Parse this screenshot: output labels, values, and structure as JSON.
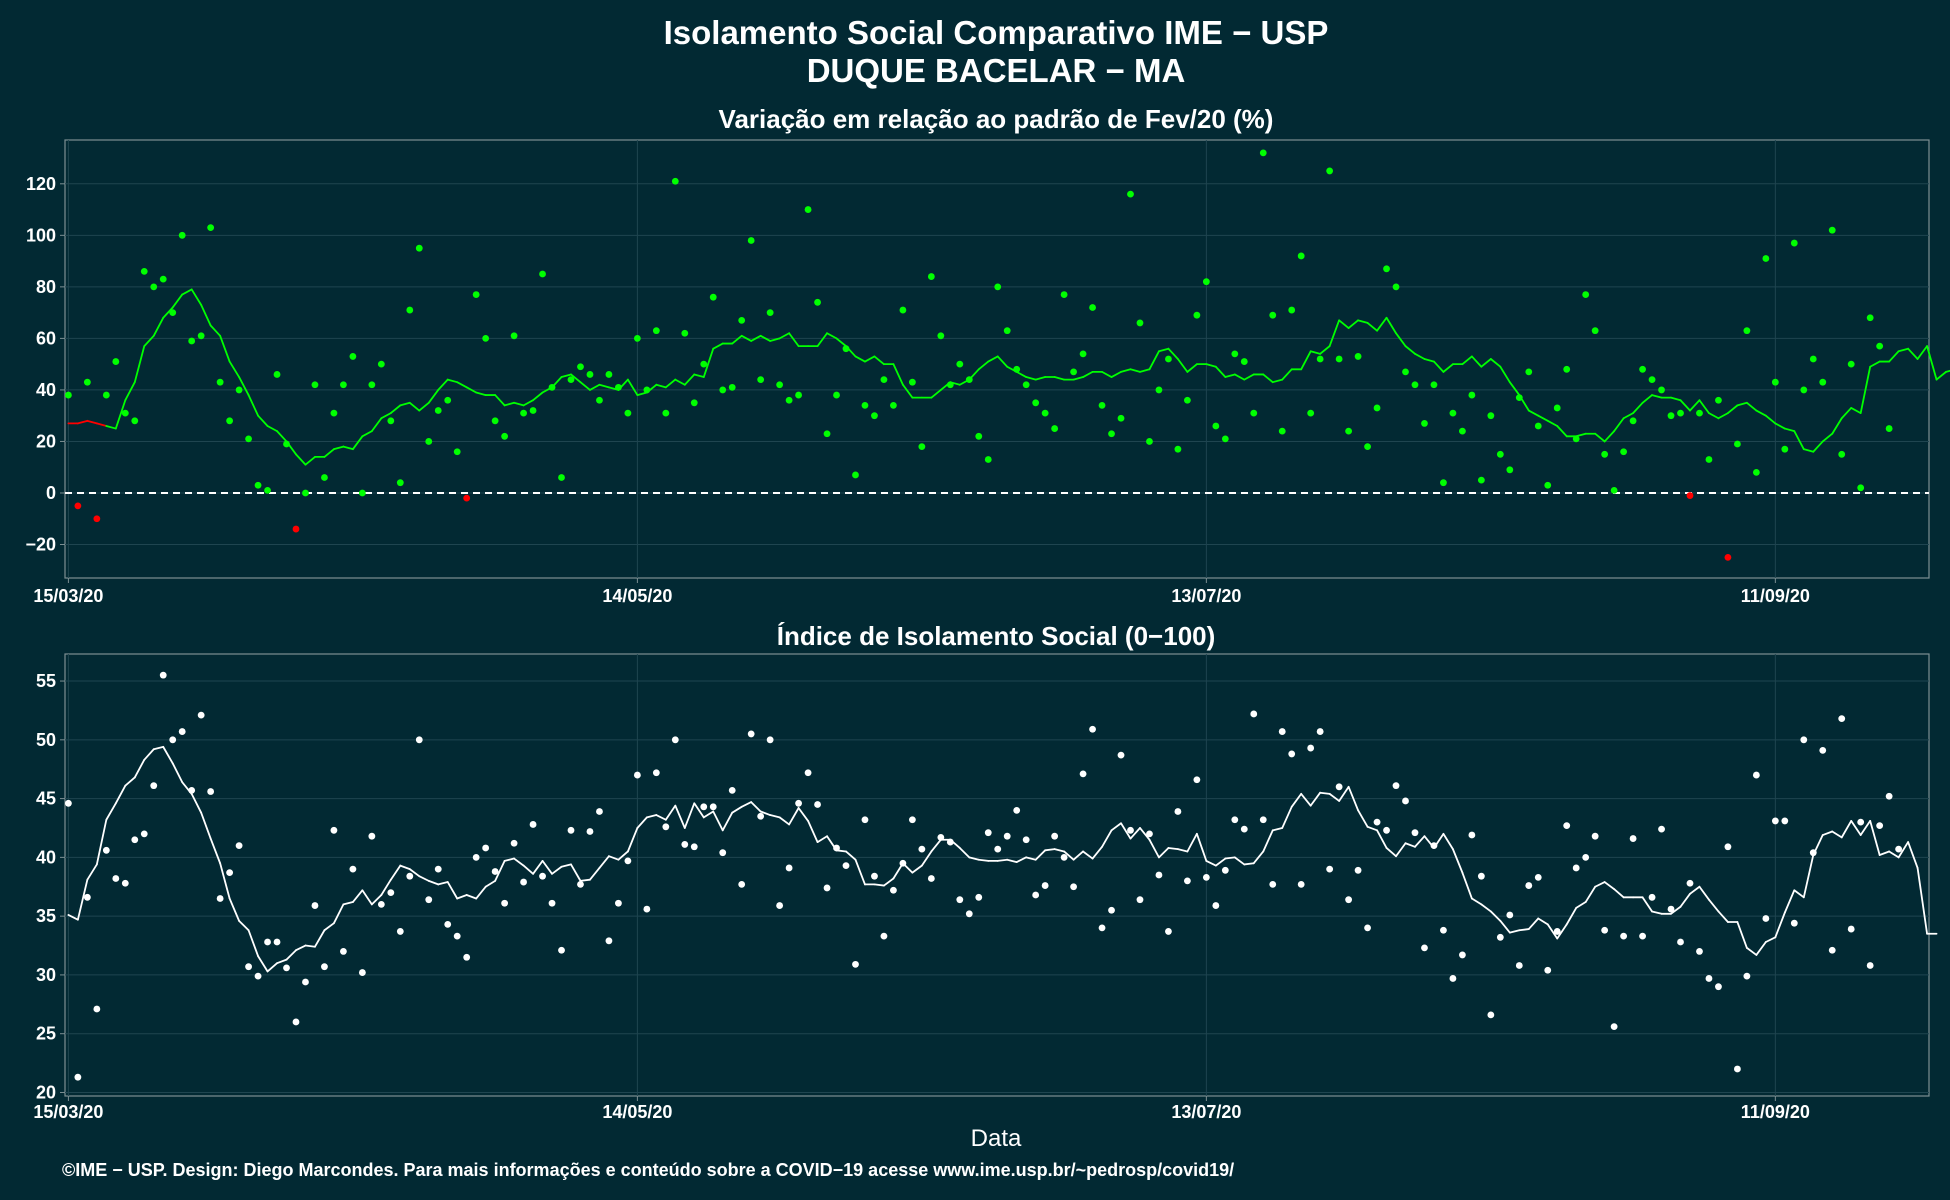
{
  "header": {
    "title_line1": "Isolamento Social Comparativo IME − USP",
    "title_line2": "DUQUE BACELAR − MA"
  },
  "footer": {
    "xlabel": "Data",
    "credit": "©IME − USP. Design: Diego Marcondes. Para mais informações e conteúdo sobre a COVID−19 acesse www.ime.usp.br/~pedrosp/covid19/"
  },
  "colors": {
    "background": "#022933",
    "positive": "#00ff00",
    "negative": "#ff0000",
    "index": "#ffffff"
  },
  "chart_data": [
    {
      "type": "scatter",
      "title": "Variação em relação ao padrão de Fev/20 (%)",
      "x_start": "2020-03-15",
      "x_end": "2020-09-25",
      "xticks": [
        "15/03/20",
        "14/05/20",
        "13/07/20",
        "11/09/20"
      ],
      "yticks": [
        -20,
        0,
        20,
        40,
        60,
        80,
        100,
        120
      ],
      "ylim": [
        -33,
        137
      ],
      "reference_line": 0,
      "series": [
        {
          "kind": "points",
          "values": [
            38,
            -5,
            43,
            -10,
            38,
            51,
            31,
            28,
            86,
            80,
            83,
            70,
            100,
            59,
            61,
            103,
            43,
            28,
            40,
            21,
            3,
            1,
            46,
            19,
            -14,
            0,
            42,
            6,
            31,
            42,
            53,
            0,
            42,
            50,
            28,
            4,
            71,
            95,
            20,
            32,
            36,
            16,
            -2,
            77,
            60,
            28,
            22,
            61,
            31,
            32,
            85,
            41,
            6,
            44,
            49,
            46,
            36,
            46,
            41,
            31,
            60,
            40,
            63,
            31,
            121,
            62,
            35,
            50,
            76,
            40,
            41,
            67,
            98,
            44,
            70,
            42,
            36,
            38,
            110,
            74,
            23,
            38,
            56,
            7,
            34,
            30,
            44,
            34,
            71,
            43,
            18,
            84,
            61,
            42,
            50,
            44,
            22,
            13,
            80,
            63,
            48,
            42,
            35,
            31,
            25,
            77,
            47,
            54,
            72,
            34,
            23,
            29,
            116,
            66,
            20,
            40,
            52,
            17,
            36,
            69,
            82,
            26,
            21,
            54,
            51,
            31,
            132,
            69,
            24,
            71,
            92,
            31,
            52,
            125,
            52,
            24,
            53,
            18,
            33,
            87,
            80,
            47,
            42,
            27,
            42,
            4,
            31,
            24,
            38,
            5,
            30,
            15,
            9,
            37,
            47,
            26,
            3,
            33,
            48,
            21,
            77,
            63,
            15,
            1,
            16,
            28,
            48,
            44,
            40,
            30,
            31,
            -1,
            31,
            13,
            36,
            -25,
            19,
            63,
            8,
            91,
            43,
            17,
            97,
            40,
            52,
            43,
            102,
            15,
            50,
            2,
            68,
            57,
            25
          ]
        },
        {
          "kind": "moving_average",
          "values": [
            27,
            27,
            28,
            27,
            26,
            25,
            36,
            43,
            57,
            61,
            68,
            72,
            77,
            79,
            73,
            65,
            61,
            51,
            45,
            38,
            30,
            26,
            24,
            20,
            15,
            11,
            14,
            14,
            17,
            18,
            17,
            22,
            24,
            29,
            31,
            34,
            35,
            32,
            35,
            40,
            44,
            43,
            41,
            39,
            38,
            38,
            34,
            35,
            34,
            36,
            39,
            41,
            45,
            46,
            43,
            40,
            42,
            41,
            40,
            44,
            38,
            39,
            42,
            41,
            44,
            42,
            46,
            45,
            56,
            58,
            58,
            61,
            59,
            61,
            59,
            60,
            62,
            57,
            57,
            57,
            62,
            60,
            57,
            53,
            51,
            53,
            50,
            50,
            42,
            37,
            37,
            37,
            40,
            43,
            42,
            44,
            48,
            51,
            53,
            49,
            47,
            45,
            44,
            45,
            45,
            44,
            44,
            45,
            47,
            47,
            45,
            47,
            48,
            47,
            48,
            55,
            56,
            52,
            47,
            50,
            50,
            49,
            45,
            46,
            44,
            46,
            46,
            43,
            44,
            48,
            48,
            55,
            54,
            57,
            67,
            64,
            67,
            66,
            63,
            68,
            62,
            57,
            54,
            52,
            51,
            47,
            50,
            50,
            53,
            49,
            52,
            49,
            43,
            38,
            32,
            30,
            28,
            26,
            22,
            22,
            23,
            23,
            20,
            24,
            29,
            31,
            35,
            38,
            37,
            37,
            36,
            32,
            36,
            31,
            29,
            31,
            34,
            35,
            32,
            30,
            27,
            25,
            24,
            17,
            16,
            20,
            23,
            29,
            33,
            31,
            49,
            51,
            51,
            55,
            56,
            52,
            57,
            44,
            47,
            48,
            46
          ]
        }
      ]
    },
    {
      "type": "scatter",
      "title": "Índice de Isolamento Social (0−100)",
      "x_start": "2020-03-15",
      "x_end": "2020-09-25",
      "xticks": [
        "15/03/20",
        "14/05/20",
        "13/07/20",
        "11/09/20"
      ],
      "yticks": [
        20,
        25,
        30,
        35,
        40,
        45,
        50,
        55
      ],
      "ylim": [
        19.7,
        57.3
      ],
      "series": [
        {
          "kind": "points",
          "values": [
            44.6,
            21.3,
            36.6,
            27.1,
            40.6,
            38.2,
            37.8,
            41.5,
            42,
            46.1,
            55.5,
            50,
            50.7,
            45.7,
            52.1,
            45.6,
            36.5,
            38.7,
            41,
            30.7,
            29.9,
            32.8,
            32.8,
            30.6,
            26,
            29.4,
            35.9,
            30.7,
            42.3,
            32,
            39,
            30.2,
            41.8,
            36,
            37,
            33.7,
            38.4,
            50,
            36.4,
            39,
            34.3,
            33.3,
            31.5,
            40,
            40.8,
            38.8,
            36.1,
            41.2,
            37.9,
            42.8,
            38.4,
            36.1,
            32.1,
            42.3,
            37.7,
            42.2,
            43.9,
            32.9,
            36.1,
            39.7,
            47,
            35.6,
            47.2,
            42.6,
            50,
            41.1,
            40.9,
            44.3,
            44.3,
            40.4,
            45.7,
            37.7,
            50.5,
            43.5,
            50,
            35.9,
            39.1,
            44.6,
            47.2,
            44.5,
            37.4,
            40.8,
            39.3,
            30.9,
            43.2,
            38.4,
            33.3,
            37.2,
            39.5,
            43.2,
            40.7,
            38.2,
            41.7,
            41.3,
            36.4,
            35.2,
            36.6,
            42.1,
            40.7,
            41.8,
            44,
            41.5,
            36.8,
            37.6,
            41.8,
            40,
            37.5,
            47.1,
            50.9,
            34,
            35.5,
            48.7,
            42.3,
            36.4,
            42,
            38.5,
            33.7,
            43.9,
            38,
            46.6,
            38.3,
            35.9,
            38.9,
            43.2,
            42.4,
            52.2,
            43.2,
            37.7,
            50.7,
            48.8,
            37.7,
            49.3,
            50.7,
            39,
            46,
            36.4,
            38.9,
            34,
            43,
            42.3,
            46.1,
            44.8,
            42.1,
            32.3,
            41,
            33.8,
            29.7,
            31.7,
            41.9,
            38.4,
            26.6,
            33.2,
            35.1,
            30.8,
            37.6,
            38.3,
            30.4,
            33.7,
            42.7,
            39.1,
            40,
            41.8,
            33.8,
            25.6,
            33.3,
            41.6,
            33.3,
            36.6,
            42.4,
            35.6,
            32.8,
            37.8,
            32,
            29.7,
            29,
            40.9,
            22,
            29.9,
            47,
            34.8,
            43.1,
            43.1,
            34.4,
            50,
            40.4,
            49.1,
            32.1,
            51.8,
            33.9,
            43,
            30.8,
            42.7,
            45.2,
            40.7
          ]
        },
        {
          "kind": "moving_average",
          "values": [
            35.1,
            34.7,
            38.1,
            39.4,
            43.2,
            44.6,
            46.1,
            46.8,
            48.3,
            49.2,
            49.4,
            48,
            46.4,
            45.4,
            43.8,
            41.6,
            39.5,
            36.5,
            34.6,
            33.8,
            31.6,
            30.3,
            31,
            31.3,
            32.1,
            32.5,
            32.4,
            33.8,
            34.4,
            36,
            36.2,
            37.2,
            36,
            36.8,
            38.1,
            39.3,
            39,
            38.4,
            38,
            37.7,
            37.9,
            36.5,
            36.8,
            36.5,
            37.5,
            38,
            39.7,
            39.9,
            39.3,
            38.6,
            39.7,
            38.6,
            39.2,
            39.4,
            38,
            38.1,
            39.1,
            40.1,
            39.8,
            40.5,
            42.5,
            43.4,
            43.6,
            43.2,
            44.4,
            42.5,
            44.6,
            43.4,
            43.9,
            42.3,
            43.8,
            44.3,
            44.7,
            43.9,
            43.6,
            43.4,
            42.8,
            44.2,
            43.1,
            41.3,
            41.8,
            40.6,
            40.5,
            39.8,
            37.7,
            37.7,
            37.6,
            38.2,
            39.5,
            38.7,
            39.3,
            40.5,
            41.5,
            41.5,
            40.8,
            40,
            39.8,
            39.7,
            39.7,
            39.8,
            39.6,
            40,
            39.8,
            40.6,
            40.7,
            40.5,
            39.8,
            40.5,
            39.9,
            40.9,
            42.3,
            42.9,
            41.6,
            42.5,
            41.5,
            40,
            40.8,
            40.7,
            40.5,
            42,
            39.7,
            39.3,
            39.9,
            40,
            39.4,
            39.5,
            40.5,
            42.3,
            42.5,
            44.3,
            45.4,
            44.4,
            45.5,
            45.4,
            44.8,
            46,
            44,
            42.6,
            42.3,
            40.8,
            40.1,
            41.2,
            40.9,
            41.8,
            40.8,
            42,
            40.7,
            38.7,
            36.5,
            36,
            35.4,
            34.6,
            33.6,
            33.8,
            33.9,
            34.8,
            34.3,
            33.1,
            34.3,
            35.7,
            36.2,
            37.5,
            37.9,
            37.3,
            36.6,
            36.6,
            36.6,
            35.4,
            35.2,
            35.2,
            35.8,
            36.9,
            37.5,
            36.4,
            35.4,
            34.5,
            34.5,
            32.3,
            31.7,
            32.8,
            33.2,
            35.3,
            37.2,
            36.6,
            40.2,
            41.9,
            42.2,
            41.7,
            43.1,
            41.9,
            43.1,
            40.2,
            40.5,
            40,
            41.3,
            39.1,
            33.5,
            33.5
          ]
        }
      ]
    }
  ]
}
